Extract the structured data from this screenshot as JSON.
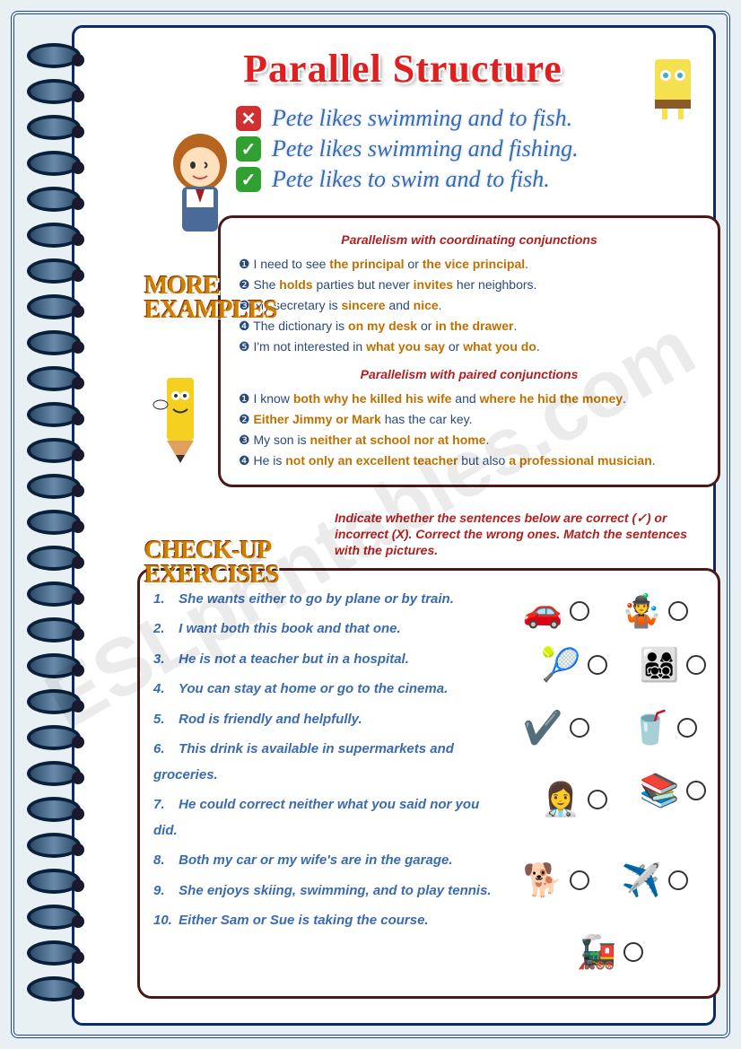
{
  "title": "Parallel Structure",
  "intro": [
    {
      "mark": "x",
      "text": "Pete likes swimming and to fish."
    },
    {
      "mark": "v",
      "text": "Pete likes swimming and fishing."
    },
    {
      "mark": "v",
      "text": "Pete likes to swim and to fish."
    }
  ],
  "labels": {
    "more": "More\nExamples",
    "check": "Check-up\nExercises"
  },
  "examples": {
    "heading1": "Parallelism with coordinating conjunctions",
    "coord": [
      {
        "pre": "I need to see ",
        "h1": "the principal",
        "mid": " or ",
        "h2": "the vice principal",
        "post": "."
      },
      {
        "pre": "She ",
        "h1": "holds",
        "mid": " parties but never ",
        "h2": "invites",
        "post": " her neighbors."
      },
      {
        "pre": "My secretary is ",
        "h1": "sincere",
        "mid": " and ",
        "h2": "nice",
        "post": "."
      },
      {
        "pre": "The dictionary is ",
        "h1": "on my desk",
        "mid": " or ",
        "h2": "in the drawer",
        "post": "."
      },
      {
        "pre": "I'm not interested in ",
        "h1": "what you say",
        "mid": " or ",
        "h2": "what you do",
        "post": "."
      }
    ],
    "heading2": "Parallelism with paired conjunctions",
    "paired": [
      {
        "pre": "I know ",
        "h1": "both why he killed his wife",
        "mid": " and ",
        "h2": "where he hid the money",
        "post": "."
      },
      {
        "pre": "",
        "h1": "Either Jimmy or Mark",
        "mid": " has the car key.",
        "h2": "",
        "post": ""
      },
      {
        "pre": "My son is ",
        "h1": "neither at school nor at home",
        "mid": ".",
        "h2": "",
        "post": ""
      },
      {
        "pre": "He is ",
        "h1": "not only an excellent teacher",
        "mid": " but also ",
        "h2": "a professional musician",
        "post": "."
      }
    ]
  },
  "instructions": "Indicate whether the sentences below are correct (✓) or incorrect (X). Correct the wrong ones. Match the sentences with the pictures.",
  "questions": [
    "She wants either to go by plane or by train.",
    "I want both this book and that one.",
    "He is not a teacher but in a hospital.",
    "You can stay at home or go to the cinema.",
    "Rod is friendly and helpfully.",
    "This drink is available in supermarkets and groceries.",
    "He could correct neither what you said nor you did.",
    "Both my car or my wife's are in the garage.",
    "She enjoys skiing, swimming, and to play tennis.",
    "Either Sam or Sue is taking the course."
  ],
  "watermark": "ESLprintables.com",
  "colors": {
    "title": "#e02020",
    "border": "#0a2a6a",
    "highlight": "#c07000",
    "text": "#2a4a7a",
    "instr": "#b02020",
    "question": "#3a6ab0"
  }
}
